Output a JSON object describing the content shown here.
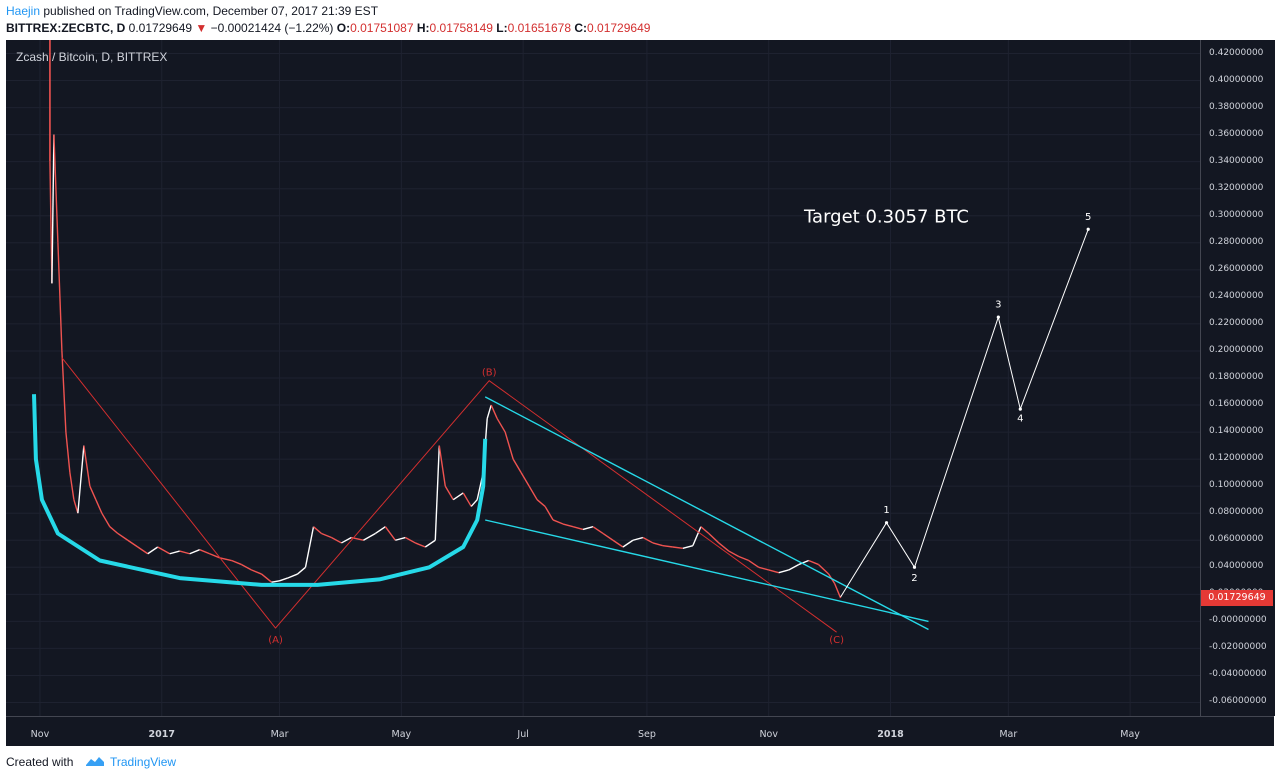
{
  "header": {
    "author": "Haejin",
    "published": " published on TradingView.com, December 07, 2017 21:39 EST",
    "symbol": "BITTREX:ZECBTC, D",
    "last": "0.01729649",
    "change": "−0.00021424 (−1.22%)",
    "o_label": "O:",
    "o_val": "0.01751087",
    "h_label": "H:",
    "h_val": "0.01758149",
    "l_label": "L:",
    "l_val": "0.01651678",
    "c_label": "C:",
    "c_val": "0.01729649"
  },
  "footer": {
    "created": "Created with",
    "brand": "TradingView"
  },
  "colors": {
    "background": "#131722",
    "up": "#ffffff",
    "down": "#ef5350",
    "channel": "#26d9e8",
    "elliott_red": "#d32f2f",
    "projection": "#ffffff",
    "price_badge": "#e53935"
  },
  "chart_data": {
    "type": "line",
    "title": "Zcash / Bitcoin, D, BITTREX",
    "x_unit": "date",
    "ylim": [
      -0.07,
      0.43
    ],
    "y_ticks": [
      0.42,
      0.4,
      0.38,
      0.36,
      0.34,
      0.32,
      0.3,
      0.28,
      0.26,
      0.24,
      0.22,
      0.2,
      0.18,
      0.16,
      0.14,
      0.12,
      0.1,
      0.08,
      0.06,
      0.04,
      0.02,
      0.0,
      -0.02,
      -0.04,
      -0.06
    ],
    "y_tick_labels": [
      "0.42000000",
      "0.40000000",
      "0.38000000",
      "0.36000000",
      "0.34000000",
      "0.32000000",
      "0.30000000",
      "0.28000000",
      "0.26000000",
      "0.24000000",
      "0.22000000",
      "0.20000000",
      "0.18000000",
      "0.16000000",
      "0.14000000",
      "0.12000000",
      "0.10000000",
      "0.08000000",
      "0.06000000",
      "0.04000000",
      "0.02000000",
      "-0.00000000",
      "-0.02000000",
      "-0.04000000",
      "-0.06000000"
    ],
    "x_ticks": [
      {
        "label": "Nov",
        "date": "2016-11-01",
        "bold": false
      },
      {
        "label": "2017",
        "date": "2017-01-01",
        "bold": true
      },
      {
        "label": "Mar",
        "date": "2017-03-01",
        "bold": false
      },
      {
        "label": "May",
        "date": "2017-05-01",
        "bold": false
      },
      {
        "label": "Jul",
        "date": "2017-07-01",
        "bold": false
      },
      {
        "label": "Sep",
        "date": "2017-09-01",
        "bold": false
      },
      {
        "label": "Nov",
        "date": "2017-11-01",
        "bold": false
      },
      {
        "label": "2018",
        "date": "2018-01-01",
        "bold": true
      },
      {
        "label": "Mar",
        "date": "2018-03-01",
        "bold": false
      },
      {
        "label": "May",
        "date": "2018-05-01",
        "bold": false
      }
    ],
    "x_range": [
      "2016-10-15",
      "2018-06-05"
    ],
    "current_price": 0.01729649,
    "current_price_label": "0.01729649",
    "price_series": {
      "name": "ZECBTC",
      "points": [
        [
          "2016-11-06",
          0.34
        ],
        [
          "2016-11-07",
          0.25
        ],
        [
          "2016-11-08",
          0.36
        ],
        [
          "2016-11-10",
          0.28
        ],
        [
          "2016-11-12",
          0.2
        ],
        [
          "2016-11-14",
          0.14
        ],
        [
          "2016-11-16",
          0.11
        ],
        [
          "2016-11-18",
          0.09
        ],
        [
          "2016-11-20",
          0.08
        ],
        [
          "2016-11-23",
          0.13
        ],
        [
          "2016-11-26",
          0.1
        ],
        [
          "2016-11-29",
          0.09
        ],
        [
          "2016-12-02",
          0.08
        ],
        [
          "2016-12-06",
          0.07
        ],
        [
          "2016-12-10",
          0.065
        ],
        [
          "2016-12-15",
          0.06
        ],
        [
          "2016-12-20",
          0.055
        ],
        [
          "2016-12-25",
          0.05
        ],
        [
          "2016-12-30",
          0.055
        ],
        [
          "2017-01-05",
          0.05
        ],
        [
          "2017-01-10",
          0.052
        ],
        [
          "2017-01-15",
          0.05
        ],
        [
          "2017-01-20",
          0.053
        ],
        [
          "2017-01-25",
          0.05
        ],
        [
          "2017-01-30",
          0.047
        ],
        [
          "2017-02-05",
          0.045
        ],
        [
          "2017-02-10",
          0.042
        ],
        [
          "2017-02-15",
          0.038
        ],
        [
          "2017-02-20",
          0.035
        ],
        [
          "2017-02-25",
          0.029
        ],
        [
          "2017-03-01",
          0.03
        ],
        [
          "2017-03-05",
          0.032
        ],
        [
          "2017-03-10",
          0.035
        ],
        [
          "2017-03-14",
          0.04
        ],
        [
          "2017-03-18",
          0.07
        ],
        [
          "2017-03-22",
          0.065
        ],
        [
          "2017-03-27",
          0.062
        ],
        [
          "2017-04-01",
          0.058
        ],
        [
          "2017-04-06",
          0.062
        ],
        [
          "2017-04-12",
          0.06
        ],
        [
          "2017-04-18",
          0.065
        ],
        [
          "2017-04-23",
          0.07
        ],
        [
          "2017-04-28",
          0.06
        ],
        [
          "2017-05-03",
          0.062
        ],
        [
          "2017-05-08",
          0.058
        ],
        [
          "2017-05-13",
          0.055
        ],
        [
          "2017-05-18",
          0.06
        ],
        [
          "2017-05-20",
          0.13
        ],
        [
          "2017-05-23",
          0.1
        ],
        [
          "2017-05-27",
          0.09
        ],
        [
          "2017-06-01",
          0.095
        ],
        [
          "2017-06-05",
          0.085
        ],
        [
          "2017-06-08",
          0.09
        ],
        [
          "2017-06-11",
          0.11
        ],
        [
          "2017-06-13",
          0.15
        ],
        [
          "2017-06-15",
          0.16
        ],
        [
          "2017-06-18",
          0.15
        ],
        [
          "2017-06-22",
          0.14
        ],
        [
          "2017-06-26",
          0.12
        ],
        [
          "2017-06-30",
          0.11
        ],
        [
          "2017-07-04",
          0.1
        ],
        [
          "2017-07-08",
          0.09
        ],
        [
          "2017-07-12",
          0.085
        ],
        [
          "2017-07-16",
          0.075
        ],
        [
          "2017-07-21",
          0.072
        ],
        [
          "2017-07-26",
          0.07
        ],
        [
          "2017-07-31",
          0.068
        ],
        [
          "2017-08-05",
          0.07
        ],
        [
          "2017-08-10",
          0.065
        ],
        [
          "2017-08-15",
          0.06
        ],
        [
          "2017-08-20",
          0.055
        ],
        [
          "2017-08-25",
          0.06
        ],
        [
          "2017-08-30",
          0.062
        ],
        [
          "2017-09-04",
          0.058
        ],
        [
          "2017-09-09",
          0.056
        ],
        [
          "2017-09-14",
          0.055
        ],
        [
          "2017-09-19",
          0.054
        ],
        [
          "2017-09-24",
          0.056
        ],
        [
          "2017-09-28",
          0.07
        ],
        [
          "2017-10-02",
          0.065
        ],
        [
          "2017-10-07",
          0.058
        ],
        [
          "2017-10-12",
          0.052
        ],
        [
          "2017-10-17",
          0.048
        ],
        [
          "2017-10-22",
          0.045
        ],
        [
          "2017-10-27",
          0.04
        ],
        [
          "2017-11-01",
          0.038
        ],
        [
          "2017-11-06",
          0.036
        ],
        [
          "2017-11-11",
          0.038
        ],
        [
          "2017-11-16",
          0.042
        ],
        [
          "2017-11-21",
          0.045
        ],
        [
          "2017-11-26",
          0.042
        ],
        [
          "2017-12-01",
          0.035
        ],
        [
          "2017-12-04",
          0.028
        ],
        [
          "2017-12-07",
          0.0173
        ]
      ]
    },
    "cup_curve": {
      "points": [
        [
          "2016-10-29",
          0.168
        ],
        [
          "2016-10-30",
          0.12
        ],
        [
          "2016-11-02",
          0.09
        ],
        [
          "2016-11-10",
          0.065
        ],
        [
          "2016-12-01",
          0.045
        ],
        [
          "2017-01-10",
          0.032
        ],
        [
          "2017-02-20",
          0.027
        ],
        [
          "2017-03-20",
          0.027
        ],
        [
          "2017-04-20",
          0.031
        ],
        [
          "2017-05-15",
          0.04
        ],
        [
          "2017-06-01",
          0.055
        ],
        [
          "2017-06-08",
          0.075
        ],
        [
          "2017-06-11",
          0.1
        ],
        [
          "2017-06-12",
          0.135
        ]
      ]
    },
    "elliott_correction": {
      "points": [
        [
          "2016-11-12",
          0.195
        ],
        [
          "2017-02-27",
          -0.005
        ],
        [
          "2017-06-14",
          0.178
        ],
        [
          "2017-12-05",
          -0.008
        ]
      ],
      "labels": [
        {
          "text": "(A)",
          "date": "2017-02-27",
          "y": -0.016
        },
        {
          "text": "(B)",
          "date": "2017-06-14",
          "y": 0.182
        },
        {
          "text": "(C)",
          "date": "2017-12-05",
          "y": -0.016
        }
      ]
    },
    "wedge_lines": [
      {
        "points": [
          [
            "2017-06-12",
            0.166
          ],
          [
            "2018-01-20",
            -0.006
          ]
        ]
      },
      {
        "points": [
          [
            "2017-06-12",
            0.075
          ],
          [
            "2018-01-20",
            0.0
          ]
        ]
      }
    ],
    "projection": {
      "points": [
        [
          "2017-12-07",
          0.018
        ],
        [
          "2017-12-30",
          0.073
        ],
        [
          "2018-01-13",
          0.04
        ],
        [
          "2018-02-24",
          0.225
        ],
        [
          "2018-03-07",
          0.157
        ],
        [
          "2018-04-10",
          0.29
        ]
      ],
      "labels": [
        {
          "text": "1",
          "date": "2017-12-30",
          "y": 0.08
        },
        {
          "text": "2",
          "date": "2018-01-13",
          "y": 0.03
        },
        {
          "text": "3",
          "date": "2018-02-24",
          "y": 0.232
        },
        {
          "text": "4",
          "date": "2018-03-07",
          "y": 0.148
        },
        {
          "text": "5",
          "date": "2018-04-10",
          "y": 0.297
        }
      ]
    },
    "annotation": "Target 0.3057 BTC"
  }
}
